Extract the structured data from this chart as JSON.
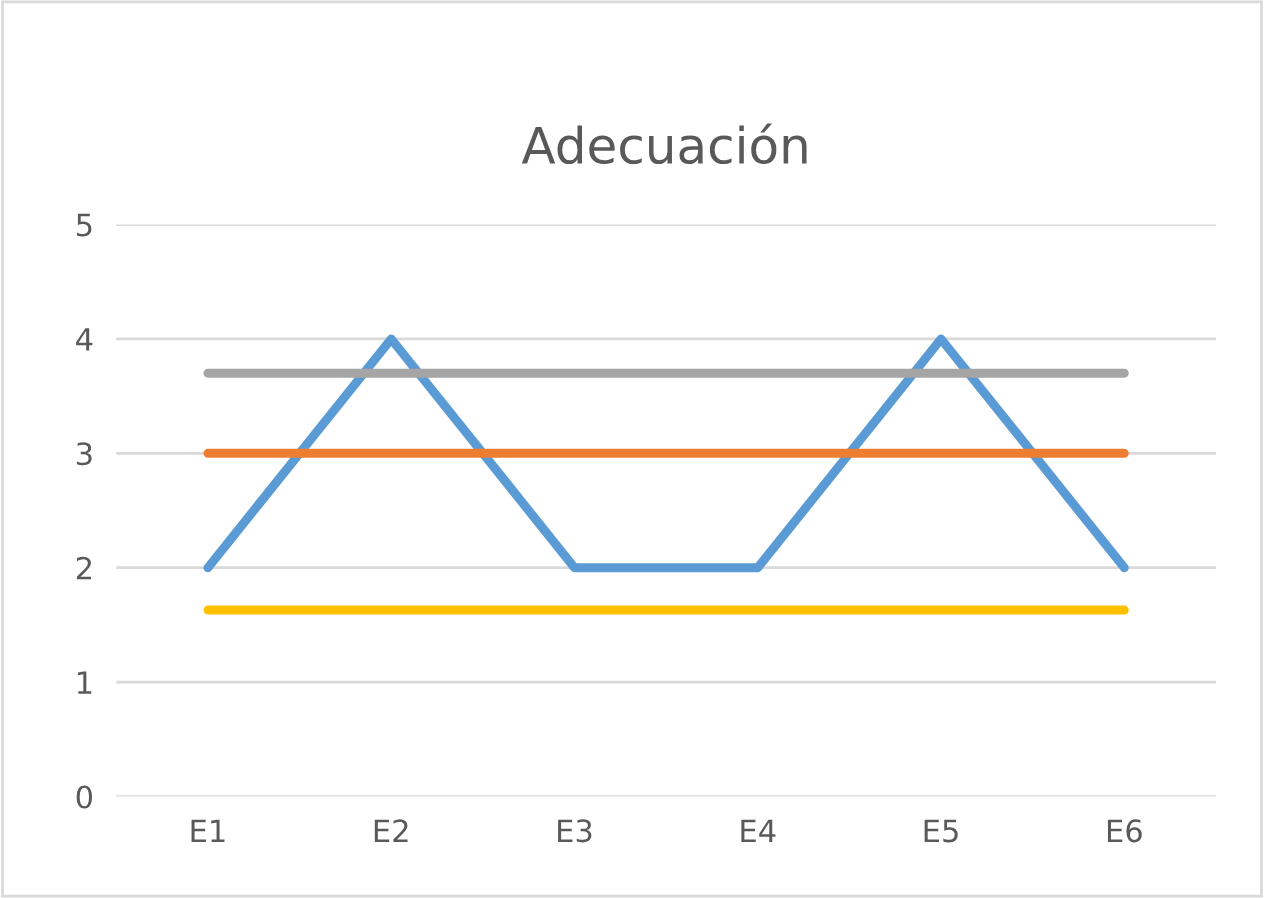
{
  "chart_data": {
    "type": "line",
    "title": "Adecuación",
    "categories": [
      "E1",
      "E2",
      "E3",
      "E4",
      "E5",
      "E6"
    ],
    "series": [
      {
        "color": "#5b9bd5",
        "values": [
          2,
          4,
          2,
          2,
          4,
          2
        ]
      },
      {
        "color": "#ed7d31",
        "values": [
          3,
          3,
          3,
          3,
          3,
          3
        ]
      },
      {
        "color": "#a5a5a5",
        "values": [
          3.7,
          3.7,
          3.7,
          3.7,
          3.7,
          3.7
        ]
      },
      {
        "color": "#ffc000",
        "values": [
          1.63,
          1.63,
          1.63,
          1.63,
          1.63,
          1.63
        ]
      }
    ],
    "ylim": [
      0,
      5
    ],
    "yticks": [
      0,
      1,
      2,
      3,
      4,
      5
    ],
    "grid": "y",
    "marker": "none",
    "line_style": "solid"
  }
}
